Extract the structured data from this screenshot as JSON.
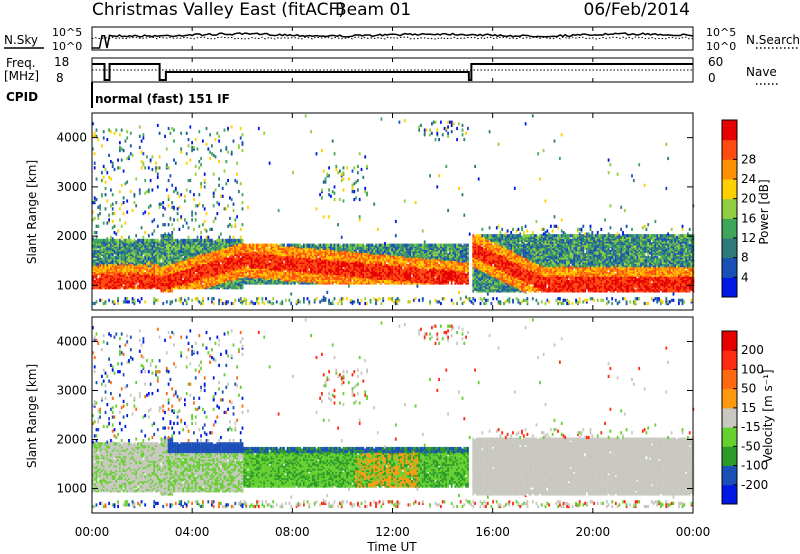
{
  "header": {
    "station": "Christmas Valley East (fitACF)",
    "beam": "Beam 01",
    "date": "06/Feb/2014"
  },
  "noise_panel": {
    "left_label": "N.Sky",
    "right_label": "N.Search",
    "tick_top": "10^5",
    "tick_bottom": "10^0"
  },
  "freq_panel": {
    "left_label_1": "Freq.",
    "left_label_2": "[MHz]",
    "left_ticks": [
      "18",
      "8"
    ],
    "right_label": "Nave",
    "right_ticks": [
      "60",
      "0"
    ],
    "cpid_label": "CPID",
    "cpid_text": "normal (fast) 151 IF"
  },
  "chart_data": [
    {
      "type": "heatmap",
      "name": "power",
      "ylabel": "Slant Range [km]",
      "yticks": [
        "1000",
        "2000",
        "3000",
        "4000"
      ],
      "ylim": [
        500,
        4500
      ],
      "xlim": [
        0,
        24
      ],
      "colorbar_label": "Power [dB]",
      "colorbar_ticks": [
        "4",
        "8",
        "12",
        "16",
        "20",
        "24",
        "28"
      ],
      "colorbar_range": [
        0,
        32
      ],
      "colors": [
        "#0018e6",
        "#1a4fb8",
        "#2f7a7a",
        "#3ea65a",
        "#8fd040",
        "#ffd000",
        "#ff9000",
        "#ff4a10",
        "#e60000"
      ]
    },
    {
      "type": "heatmap",
      "name": "velocity",
      "ylabel": "Slant Range [km]",
      "yticks": [
        "1000",
        "2000",
        "3000",
        "4000"
      ],
      "ylim": [
        500,
        4500
      ],
      "xlim": [
        0,
        24
      ],
      "colorbar_label": "Velocity [m s⁻¹]",
      "colorbar_ticks": [
        "200",
        "100",
        "50",
        "15",
        "-15",
        "-50",
        "-100",
        "-200"
      ],
      "colors": [
        "#0018e6",
        "#1a4fb8",
        "#2a9a2a",
        "#66d030",
        "#c8c8c0",
        "#ff9a10",
        "#ff6a10",
        "#ff2a10",
        "#e60000"
      ]
    }
  ],
  "xaxis": {
    "ticks": [
      "00:00",
      "04:00",
      "08:00",
      "12:00",
      "16:00",
      "20:00",
      "00:00"
    ],
    "label": "Time UT"
  }
}
